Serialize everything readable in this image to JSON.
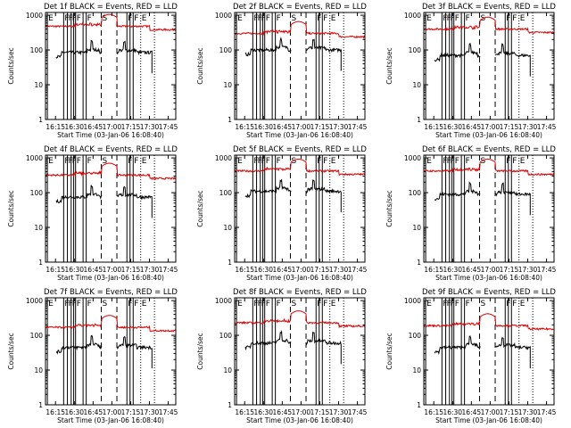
{
  "chart_data": {
    "type": "line",
    "shared": {
      "xlabel": "Start Time (03-Jan-06 16:08:40)",
      "ylabel": "Counts/sec",
      "x_ticks": [
        "16:15",
        "16:30",
        "16:45",
        "17:00",
        "17:15",
        "17:30",
        "17:45"
      ],
      "x_tick_minutes": [
        15,
        30,
        45,
        60,
        75,
        90,
        105
      ],
      "xlim_minutes": [
        7,
        111
      ],
      "y_ticks": [
        "1",
        "10",
        "100",
        "1000"
      ],
      "y_tick_values": [
        1,
        10,
        100,
        1000
      ],
      "ylim": [
        1,
        1200
      ],
      "y_scale": "log",
      "series_colors": {
        "events": "#000000",
        "lld": "#dd0000"
      },
      "solid_markers": [
        {
          "minute": 8.5,
          "label": "E"
        },
        {
          "minute": 21.5,
          "label": "F"
        },
        {
          "minute": 24.5,
          "label": "F"
        },
        {
          "minute": 27.5,
          "label": "F"
        },
        {
          "minute": 29.5,
          "label": ""
        },
        {
          "minute": 31,
          "label": "F"
        },
        {
          "minute": 37,
          "label": ""
        },
        {
          "minute": 39.5,
          "label": "F"
        },
        {
          "minute": 72,
          "label": "F"
        },
        {
          "minute": 74.5,
          "label": ""
        },
        {
          "minute": 77,
          "label": "F"
        }
      ],
      "dashed_markers": [
        {
          "minute": 51.5,
          "label": "S"
        },
        {
          "minute": 64,
          "label": ""
        }
      ],
      "dotted_markers": [
        {
          "minute": 83,
          "label": "E"
        },
        {
          "minute": 94,
          "label": ""
        }
      ],
      "events_visible_range_minutes": [
        15.5,
        92
      ],
      "data_gap_minutes": [
        52,
        64
      ]
    },
    "panels": [
      {
        "title": "Det 1f BLACK = Events, RED = LLD",
        "events_level": 85,
        "lld_level": 480
      },
      {
        "title": "Det 2f BLACK = Events, RED = LLD",
        "events_level": 100,
        "lld_level": 300
      },
      {
        "title": "Det 3f BLACK = Events, RED = LLD",
        "events_level": 70,
        "lld_level": 400
      },
      {
        "title": "Det 4f BLACK = Events, RED = LLD",
        "events_level": 75,
        "lld_level": 320
      },
      {
        "title": "Det 5f BLACK = Events, RED = LLD",
        "events_level": 110,
        "lld_level": 420
      },
      {
        "title": "Det 6f BLACK = Events, RED = LLD",
        "events_level": 90,
        "lld_level": 420
      },
      {
        "title": "Det 7f BLACK = Events, RED = LLD",
        "events_level": 45,
        "lld_level": 170
      },
      {
        "title": "Det 8f BLACK = Events, RED = LLD",
        "events_level": 60,
        "lld_level": 230
      },
      {
        "title": "Det 9f BLACK = Events, RED = LLD",
        "events_level": 45,
        "lld_level": 190
      }
    ]
  }
}
